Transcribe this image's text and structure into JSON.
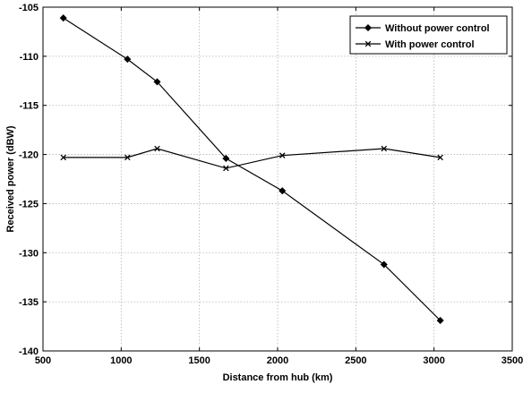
{
  "chart_data": {
    "type": "line",
    "title": "",
    "xlabel": "Distance from hub (km)",
    "ylabel": "Received power (dBW)",
    "xlim": [
      500,
      3500
    ],
    "ylim": [
      -140,
      -105
    ],
    "x_ticks": [
      500,
      1000,
      1500,
      2000,
      2500,
      3000,
      3500
    ],
    "y_ticks": [
      -105,
      -110,
      -115,
      -120,
      -125,
      -130,
      -135,
      -140
    ],
    "grid": true,
    "legend_position": "top-right",
    "series": [
      {
        "name": "Without power control",
        "marker": "diamond",
        "color": "#000000",
        "points": [
          {
            "x": 630,
            "y": -106.1
          },
          {
            "x": 1040,
            "y": -110.3
          },
          {
            "x": 1230,
            "y": -112.6
          },
          {
            "x": 1670,
            "y": -120.4
          },
          {
            "x": 2030,
            "y": -123.7
          },
          {
            "x": 2680,
            "y": -131.2
          },
          {
            "x": 3040,
            "y": -136.9
          }
        ]
      },
      {
        "name": "With power control",
        "marker": "x",
        "color": "#000000",
        "points": [
          {
            "x": 630,
            "y": -120.3
          },
          {
            "x": 1040,
            "y": -120.3
          },
          {
            "x": 1230,
            "y": -119.4
          },
          {
            "x": 1670,
            "y": -121.4
          },
          {
            "x": 2030,
            "y": -120.1
          },
          {
            "x": 2680,
            "y": -119.4
          },
          {
            "x": 3040,
            "y": -120.3
          }
        ]
      }
    ]
  }
}
